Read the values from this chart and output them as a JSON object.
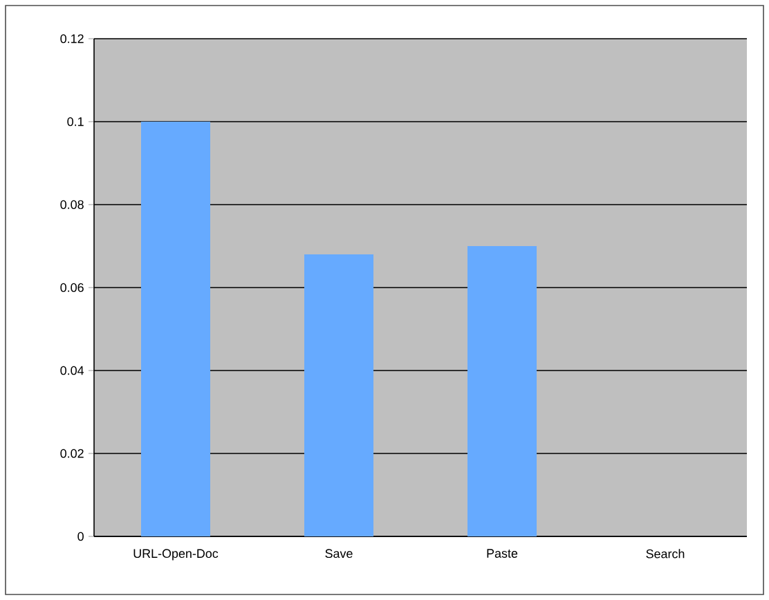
{
  "chart_data": {
    "type": "bar",
    "categories": [
      "URL-Open-Doc",
      "Save",
      "Paste",
      "Search"
    ],
    "values": [
      0.1,
      0.068,
      0.07,
      0
    ],
    "color": "#66aaff",
    "ylim": [
      0,
      0.12
    ],
    "yticks": [
      0,
      0.02,
      0.04,
      0.06,
      0.08,
      0.1,
      0.12
    ],
    "grid": "y"
  }
}
